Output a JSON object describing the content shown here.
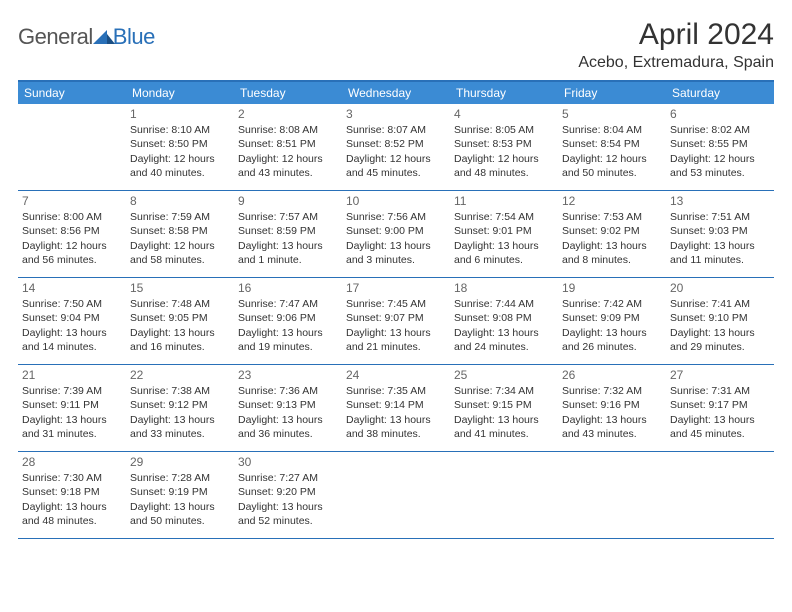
{
  "brand": {
    "part1": "General",
    "part2": "Blue"
  },
  "title": "April 2024",
  "location": "Acebo, Extremadura, Spain",
  "colors": {
    "header_bg": "#3b8bd4",
    "border": "#2970b8",
    "text": "#333333",
    "daynum": "#666666",
    "background": "#ffffff"
  },
  "layout": {
    "columns": 7,
    "rows": 5,
    "first_day_column_index": 1
  },
  "weekdays": [
    "Sunday",
    "Monday",
    "Tuesday",
    "Wednesday",
    "Thursday",
    "Friday",
    "Saturday"
  ],
  "days": [
    {
      "n": 1,
      "sr": "8:10 AM",
      "ss": "8:50 PM",
      "dl": "12 hours and 40 minutes."
    },
    {
      "n": 2,
      "sr": "8:08 AM",
      "ss": "8:51 PM",
      "dl": "12 hours and 43 minutes."
    },
    {
      "n": 3,
      "sr": "8:07 AM",
      "ss": "8:52 PM",
      "dl": "12 hours and 45 minutes."
    },
    {
      "n": 4,
      "sr": "8:05 AM",
      "ss": "8:53 PM",
      "dl": "12 hours and 48 minutes."
    },
    {
      "n": 5,
      "sr": "8:04 AM",
      "ss": "8:54 PM",
      "dl": "12 hours and 50 minutes."
    },
    {
      "n": 6,
      "sr": "8:02 AM",
      "ss": "8:55 PM",
      "dl": "12 hours and 53 minutes."
    },
    {
      "n": 7,
      "sr": "8:00 AM",
      "ss": "8:56 PM",
      "dl": "12 hours and 56 minutes."
    },
    {
      "n": 8,
      "sr": "7:59 AM",
      "ss": "8:58 PM",
      "dl": "12 hours and 58 minutes."
    },
    {
      "n": 9,
      "sr": "7:57 AM",
      "ss": "8:59 PM",
      "dl": "13 hours and 1 minute."
    },
    {
      "n": 10,
      "sr": "7:56 AM",
      "ss": "9:00 PM",
      "dl": "13 hours and 3 minutes."
    },
    {
      "n": 11,
      "sr": "7:54 AM",
      "ss": "9:01 PM",
      "dl": "13 hours and 6 minutes."
    },
    {
      "n": 12,
      "sr": "7:53 AM",
      "ss": "9:02 PM",
      "dl": "13 hours and 8 minutes."
    },
    {
      "n": 13,
      "sr": "7:51 AM",
      "ss": "9:03 PM",
      "dl": "13 hours and 11 minutes."
    },
    {
      "n": 14,
      "sr": "7:50 AM",
      "ss": "9:04 PM",
      "dl": "13 hours and 14 minutes."
    },
    {
      "n": 15,
      "sr": "7:48 AM",
      "ss": "9:05 PM",
      "dl": "13 hours and 16 minutes."
    },
    {
      "n": 16,
      "sr": "7:47 AM",
      "ss": "9:06 PM",
      "dl": "13 hours and 19 minutes."
    },
    {
      "n": 17,
      "sr": "7:45 AM",
      "ss": "9:07 PM",
      "dl": "13 hours and 21 minutes."
    },
    {
      "n": 18,
      "sr": "7:44 AM",
      "ss": "9:08 PM",
      "dl": "13 hours and 24 minutes."
    },
    {
      "n": 19,
      "sr": "7:42 AM",
      "ss": "9:09 PM",
      "dl": "13 hours and 26 minutes."
    },
    {
      "n": 20,
      "sr": "7:41 AM",
      "ss": "9:10 PM",
      "dl": "13 hours and 29 minutes."
    },
    {
      "n": 21,
      "sr": "7:39 AM",
      "ss": "9:11 PM",
      "dl": "13 hours and 31 minutes."
    },
    {
      "n": 22,
      "sr": "7:38 AM",
      "ss": "9:12 PM",
      "dl": "13 hours and 33 minutes."
    },
    {
      "n": 23,
      "sr": "7:36 AM",
      "ss": "9:13 PM",
      "dl": "13 hours and 36 minutes."
    },
    {
      "n": 24,
      "sr": "7:35 AM",
      "ss": "9:14 PM",
      "dl": "13 hours and 38 minutes."
    },
    {
      "n": 25,
      "sr": "7:34 AM",
      "ss": "9:15 PM",
      "dl": "13 hours and 41 minutes."
    },
    {
      "n": 26,
      "sr": "7:32 AM",
      "ss": "9:16 PM",
      "dl": "13 hours and 43 minutes."
    },
    {
      "n": 27,
      "sr": "7:31 AM",
      "ss": "9:17 PM",
      "dl": "13 hours and 45 minutes."
    },
    {
      "n": 28,
      "sr": "7:30 AM",
      "ss": "9:18 PM",
      "dl": "13 hours and 48 minutes."
    },
    {
      "n": 29,
      "sr": "7:28 AM",
      "ss": "9:19 PM",
      "dl": "13 hours and 50 minutes."
    },
    {
      "n": 30,
      "sr": "7:27 AM",
      "ss": "9:20 PM",
      "dl": "13 hours and 52 minutes."
    }
  ],
  "labels": {
    "sunrise": "Sunrise:",
    "sunset": "Sunset:",
    "daylight": "Daylight:"
  }
}
